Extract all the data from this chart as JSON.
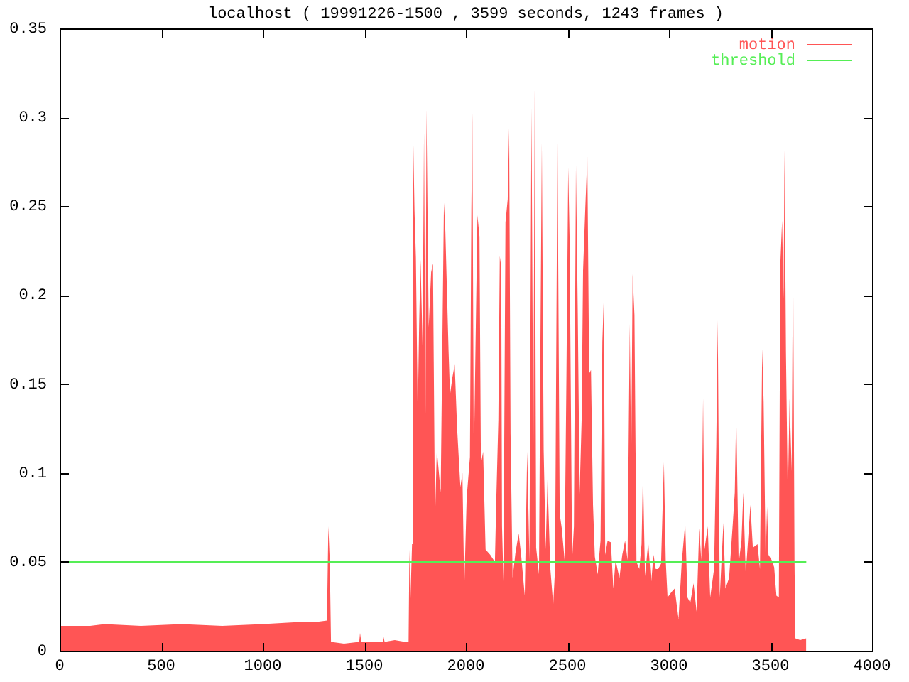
{
  "chart_data": {
    "type": "area",
    "title": "localhost ( 19991226-1500 , 3599 seconds, 1243 frames )",
    "xlim": [
      0,
      4000
    ],
    "xticks": [
      0,
      500,
      1000,
      1500,
      2000,
      2500,
      3000,
      3500,
      4000
    ],
    "ylim": [
      0,
      0.35
    ],
    "yticks": [
      0,
      0.05,
      0.1,
      0.15,
      0.2,
      0.25,
      0.3,
      0.35
    ],
    "legend": "top right",
    "marker": "none",
    "series": [
      {
        "name": "motion",
        "color": "#ff5555",
        "x": [
          0,
          150,
          222,
          400,
          600,
          800,
          1000,
          1153,
          1250,
          1316,
          1323,
          1330,
          1336,
          1400,
          1475,
          1479,
          1485,
          1550,
          1590,
          1594,
          1600,
          1650,
          1700,
          1718,
          1722,
          1727,
          1735,
          1740,
          1747,
          1754,
          1763,
          1770,
          1777,
          1787,
          1794,
          1801,
          1806,
          1817,
          1829,
          1838,
          1848,
          1857,
          1876,
          1892,
          1899,
          1915,
          1922,
          1934,
          1945,
          1957,
          1973,
          1983,
          1992,
          2004,
          2020,
          2027,
          2032,
          2039,
          2057,
          2067,
          2074,
          2085,
          2097,
          2120,
          2143,
          2150,
          2160,
          2167,
          2174,
          2178,
          2185,
          2195,
          2206,
          2213,
          2220,
          2230,
          2244,
          2260,
          2272,
          2290,
          2302,
          2313,
          2323,
          2332,
          2339,
          2346,
          2360,
          2367,
          2374,
          2383,
          2393,
          2402,
          2416,
          2430,
          2439,
          2451,
          2462,
          2472,
          2486,
          2495,
          2504,
          2511,
          2523,
          2532,
          2542,
          2551,
          2560,
          2570,
          2577,
          2588,
          2598,
          2607,
          2616,
          2626,
          2635,
          2649,
          2663,
          2672,
          2679,
          2686,
          2698,
          2714,
          2726,
          2737,
          2756,
          2770,
          2784,
          2796,
          2807,
          2814,
          2821,
          2830,
          2840,
          2854,
          2865,
          2872,
          2882,
          2898,
          2912,
          2924,
          2935,
          2947,
          2961,
          2975,
          2984,
          2993,
          3012,
          3028,
          3047,
          3063,
          3080,
          3091,
          3105,
          3121,
          3136,
          3149,
          3159,
          3168,
          3175,
          3191,
          3203,
          3222,
          3233,
          3240,
          3250,
          3268,
          3278,
          3296,
          3315,
          3324,
          3331,
          3343,
          3357,
          3366,
          3378,
          3401,
          3413,
          3436,
          3448,
          3459,
          3466,
          3476,
          3483,
          3490,
          3506,
          3518,
          3529,
          3541,
          3548,
          3557,
          3564,
          3569,
          3576,
          3585,
          3594,
          3604,
          3611,
          3618,
          3622,
          3646,
          3676
        ],
        "values": [
          0.014,
          0.014,
          0.015,
          0.014,
          0.015,
          0.014,
          0.015,
          0.016,
          0.016,
          0.017,
          0.07,
          0.05,
          0.005,
          0.004,
          0.005,
          0.01,
          0.005,
          0.005,
          0.005,
          0.008,
          0.005,
          0.006,
          0.005,
          0.005,
          0.057,
          0.028,
          0.06,
          0.293,
          0.248,
          0.221,
          0.132,
          0.184,
          0.22,
          0.17,
          0.292,
          0.132,
          0.305,
          0.182,
          0.213,
          0.218,
          0.074,
          0.113,
          0.089,
          0.252,
          0.236,
          0.168,
          0.144,
          0.154,
          0.161,
          0.125,
          0.092,
          0.1,
          0.035,
          0.086,
          0.109,
          0.248,
          0.303,
          0.105,
          0.245,
          0.233,
          0.105,
          0.112,
          0.057,
          0.054,
          0.05,
          0.086,
          0.13,
          0.222,
          0.216,
          0.07,
          0.039,
          0.241,
          0.254,
          0.294,
          0.122,
          0.041,
          0.055,
          0.066,
          0.054,
          0.031,
          0.112,
          0.051,
          0.306,
          0.11,
          0.317,
          0.058,
          0.043,
          0.172,
          0.286,
          0.113,
          0.057,
          0.096,
          0.046,
          0.026,
          0.046,
          0.289,
          0.077,
          0.069,
          0.051,
          0.153,
          0.272,
          0.23,
          0.051,
          0.07,
          0.273,
          0.19,
          0.088,
          0.13,
          0.214,
          0.249,
          0.278,
          0.156,
          0.158,
          0.082,
          0.053,
          0.043,
          0.062,
          0.174,
          0.198,
          0.054,
          0.062,
          0.061,
          0.035,
          0.051,
          0.041,
          0.054,
          0.062,
          0.051,
          0.184,
          0.105,
          0.212,
          0.189,
          0.05,
          0.046,
          0.06,
          0.101,
          0.042,
          0.061,
          0.038,
          0.054,
          0.046,
          0.046,
          0.049,
          0.106,
          0.051,
          0.03,
          0.033,
          0.035,
          0.018,
          0.05,
          0.072,
          0.03,
          0.027,
          0.038,
          0.022,
          0.069,
          0.051,
          0.142,
          0.057,
          0.07,
          0.03,
          0.046,
          0.116,
          0.186,
          0.03,
          0.072,
          0.035,
          0.041,
          0.073,
          0.089,
          0.135,
          0.049,
          0.062,
          0.089,
          0.043,
          0.082,
          0.058,
          0.06,
          0.046,
          0.17,
          0.14,
          0.051,
          0.081,
          0.054,
          0.051,
          0.047,
          0.031,
          0.03,
          0.217,
          0.242,
          0.198,
          0.282,
          0.168,
          0.086,
          0.142,
          0.101,
          0.224,
          0.051,
          0.007,
          0.006,
          0.007
        ]
      },
      {
        "name": "threshold",
        "type": "line",
        "color": "#55ee55",
        "x": [
          0,
          3676
        ],
        "values": [
          0.05,
          0.05
        ]
      }
    ]
  }
}
